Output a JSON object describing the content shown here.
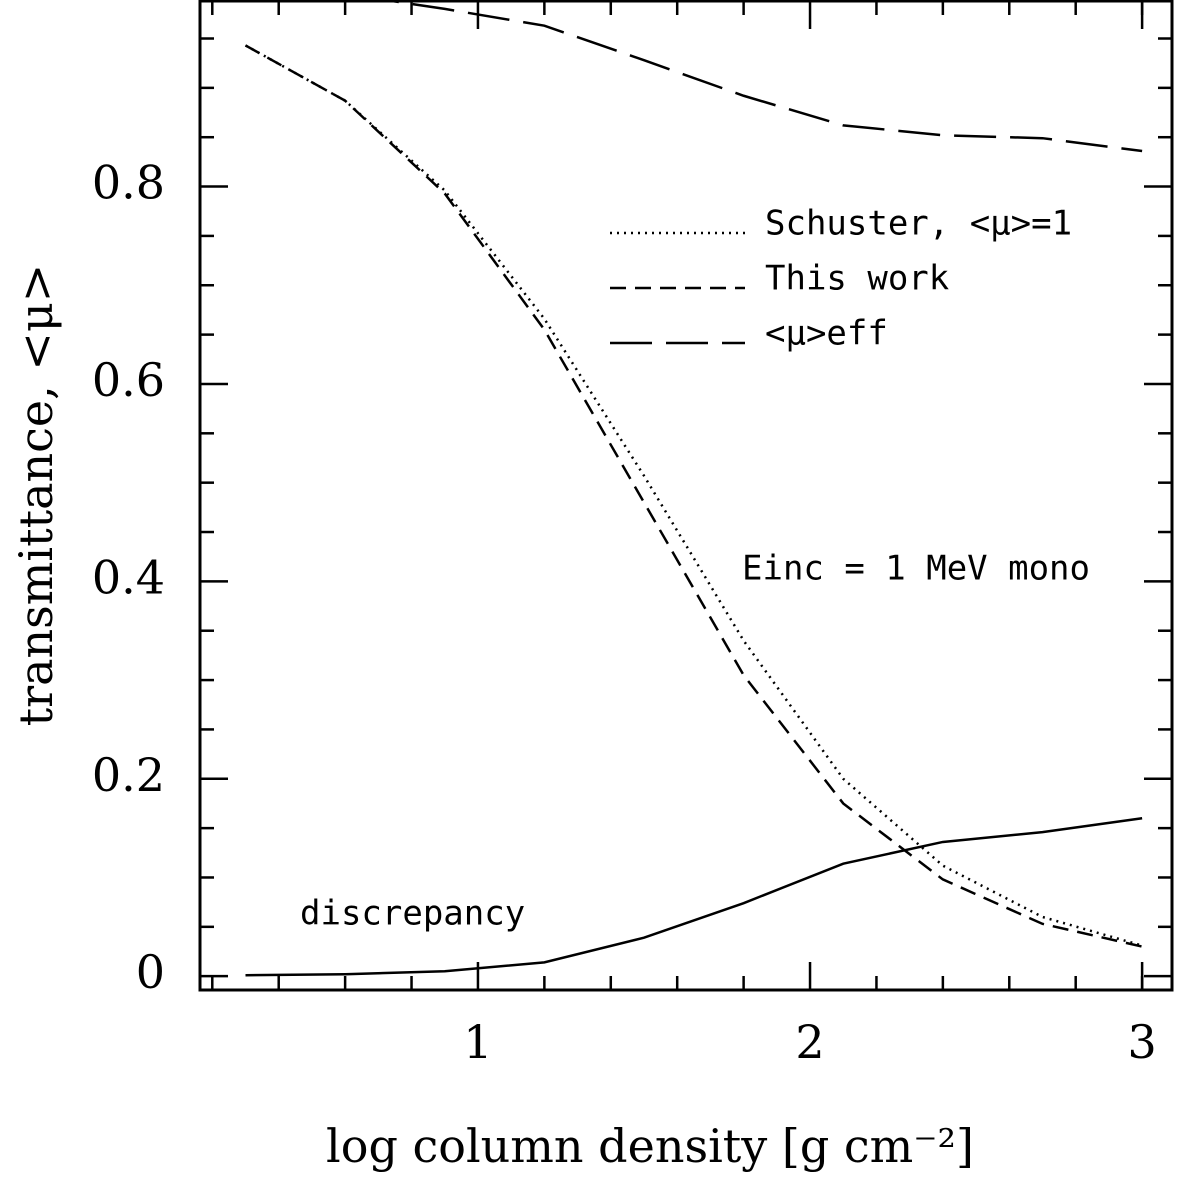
{
  "chart_data": {
    "type": "line",
    "xlabel": "log column density [g cm⁻²]",
    "ylabel": "transmittance, <μ>",
    "annotation": "Einc = 1 MeV mono",
    "x": [
      0.3,
      0.6,
      0.9,
      1.2,
      1.5,
      1.8,
      2.1,
      2.4,
      2.7,
      3.0
    ],
    "series": [
      {
        "name": "Schuster, <μ>=1",
        "color": "#000000",
        "dash": "dotted",
        "values": [
          0.943,
          0.887,
          0.796,
          0.666,
          0.507,
          0.34,
          0.2,
          0.112,
          0.06,
          0.031
        ]
      },
      {
        "name": "This work",
        "color": "#000000",
        "dash": "dashed",
        "values": [
          0.943,
          0.887,
          0.793,
          0.655,
          0.48,
          0.305,
          0.175,
          0.098,
          0.053,
          0.03
        ]
      },
      {
        "name": "<μ>eff",
        "color": "#000000",
        "dash": "longdash",
        "values": [
          1.0,
          0.995,
          0.98,
          0.963,
          0.928,
          0.892,
          0.862,
          0.852,
          0.849,
          0.836
        ]
      },
      {
        "name": "discrepancy",
        "color": "#000000",
        "dash": "solid",
        "values": [
          0.001,
          0.002,
          0.005,
          0.014,
          0.039,
          0.074,
          0.114,
          0.136,
          0.146,
          0.16
        ]
      }
    ],
    "xlim": [
      0.163,
      3.09
    ],
    "ylim": [
      -0.014,
      0.988
    ],
    "xticks": [
      1,
      2,
      3
    ],
    "yticks": [
      0,
      0.2,
      0.4,
      0.6,
      0.8
    ],
    "xticks_minor": [
      0.2,
      0.4,
      0.6,
      0.8,
      1.2,
      1.4,
      1.6,
      1.8,
      2.2,
      2.4,
      2.6,
      2.8,
      3.0
    ],
    "yticks_minor": [
      0.05,
      0.1,
      0.15,
      0.25,
      0.3,
      0.35,
      0.45,
      0.5,
      0.55,
      0.65,
      0.7,
      0.75,
      0.85,
      0.9,
      0.95
    ],
    "legend": "upper right",
    "grid": false
  }
}
